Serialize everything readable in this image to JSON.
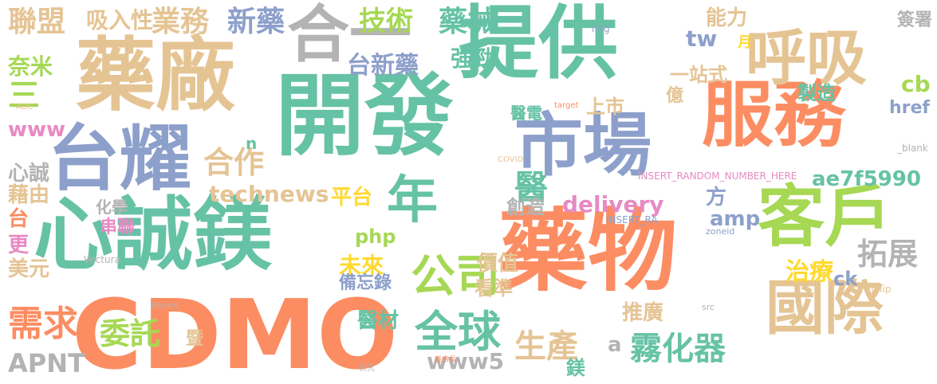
{
  "palette": {
    "orange": "#fc8d62",
    "green": "#66c2a5",
    "blue": "#8da0cb",
    "tan": "#e5c494",
    "gray": "#b3b3b3",
    "pink": "#e78ac3",
    "lime": "#a6d854",
    "yellow": "#ffd92f"
  },
  "words": [
    {
      "text": "開發",
      "color": "green"
    },
    {
      "text": "藥物",
      "color": "orange"
    },
    {
      "text": "CDMO",
      "color": "orange"
    },
    {
      "text": "提供",
      "color": "green"
    },
    {
      "text": "藥廠",
      "color": "tan"
    },
    {
      "text": "心誠鎂",
      "color": "green"
    },
    {
      "text": "市場",
      "color": "blue"
    },
    {
      "text": "服務",
      "color": "orange"
    },
    {
      "text": "台耀",
      "color": "blue"
    },
    {
      "text": "客戶",
      "color": "lime"
    },
    {
      "text": "國際",
      "color": "tan"
    },
    {
      "text": "合一",
      "color": "gray"
    },
    {
      "text": "呼吸",
      "color": "tan"
    },
    {
      "text": "年",
      "color": "green"
    },
    {
      "text": "公司",
      "color": "lime"
    },
    {
      "text": "全球",
      "color": "green"
    },
    {
      "text": "需求",
      "color": "orange"
    },
    {
      "text": "霧化器",
      "color": "green"
    },
    {
      "text": "生產",
      "color": "tan"
    },
    {
      "text": "拓展",
      "color": "gray"
    },
    {
      "text": "委託",
      "color": "lime"
    },
    {
      "text": "合作",
      "color": "tan"
    },
    {
      "text": "業務",
      "color": "tan"
    },
    {
      "text": "新藥",
      "color": "blue"
    },
    {
      "text": "聯盟",
      "color": "tan"
    },
    {
      "text": "吸入性",
      "color": "tan"
    },
    {
      "text": "技術",
      "color": "lime"
    },
    {
      "text": "藥械",
      "color": "green"
    },
    {
      "text": "台新藥",
      "color": "blue"
    },
    {
      "text": "強勁",
      "color": "green"
    },
    {
      "text": "未來",
      "color": "yellow"
    },
    {
      "text": "治療",
      "color": "yellow"
    },
    {
      "text": "APNT",
      "color": "gray"
    },
    {
      "text": "www5",
      "color": "gray"
    },
    {
      "text": "technews",
      "color": "tan"
    },
    {
      "text": "delivery",
      "color": "pink"
    },
    {
      "text": "ae7f5990",
      "color": "green"
    },
    {
      "text": "平台",
      "color": "yellow"
    },
    {
      "text": "醫",
      "color": "green"
    },
    {
      "text": "上市",
      "color": "tan"
    },
    {
      "text": "醫電",
      "color": "green"
    },
    {
      "text": "一站式",
      "color": "tan"
    },
    {
      "text": "製造",
      "color": "green"
    },
    {
      "text": "能力",
      "color": "tan"
    },
    {
      "text": "奈米",
      "color": "lime"
    },
    {
      "text": "三",
      "color": "lime"
    },
    {
      "text": "www",
      "color": "pink"
    },
    {
      "text": "心誠",
      "color": "gray"
    },
    {
      "text": "藉由",
      "color": "tan"
    },
    {
      "text": "台",
      "color": "orange"
    },
    {
      "text": "更",
      "color": "pink"
    },
    {
      "text": "美元",
      "color": "tan"
    },
    {
      "text": "價值",
      "color": "tan"
    },
    {
      "text": "備忘錄",
      "color": "blue"
    },
    {
      "text": "醫材",
      "color": "green"
    },
    {
      "text": "創造",
      "color": "gray"
    },
    {
      "text": "php",
      "color": "lime"
    },
    {
      "text": "amp",
      "color": "blue"
    },
    {
      "text": "方",
      "color": "blue"
    },
    {
      "text": "看準",
      "color": "tan"
    },
    {
      "text": "推廣",
      "color": "tan"
    },
    {
      "text": "鎂",
      "color": "green"
    },
    {
      "text": "化學",
      "color": "gray"
    },
    {
      "text": "串聯",
      "color": "pink"
    },
    {
      "text": "tw",
      "color": "blue"
    },
    {
      "text": "cb",
      "color": "lime"
    },
    {
      "text": "href",
      "color": "blue"
    },
    {
      "text": "ck",
      "color": "blue"
    },
    {
      "text": "簽署",
      "color": "gray"
    },
    {
      "text": "億",
      "color": "tan"
    },
    {
      "text": "月",
      "color": "yellow"
    },
    {
      "text": "n",
      "color": "green"
    },
    {
      "text": "暨",
      "color": "tan"
    },
    {
      "text": "a",
      "color": "gray"
    },
    {
      "text": "INSERT_RANDOM_NUMBER_HERE",
      "color": "pink"
    },
    {
      "text": "COVID",
      "color": "tan"
    },
    {
      "text": "Vectura",
      "color": "gray"
    },
    {
      "text": "Philip",
      "color": "tan"
    },
    {
      "text": "_blank",
      "color": "gray"
    },
    {
      "text": "zoneid",
      "color": "blue"
    },
    {
      "text": "INSERT_RA",
      "color": "blue"
    },
    {
      "text": "target",
      "color": "orange"
    },
    {
      "text": "ADC",
      "color": "tan"
    },
    {
      "text": "img",
      "color": "blue"
    },
    {
      "text": "Morris",
      "color": "gray"
    },
    {
      "text": "src",
      "color": "gray"
    },
    {
      "text": "研究",
      "color": "gray"
    },
    {
      "text": "董事長",
      "color": "orange"
    }
  ]
}
